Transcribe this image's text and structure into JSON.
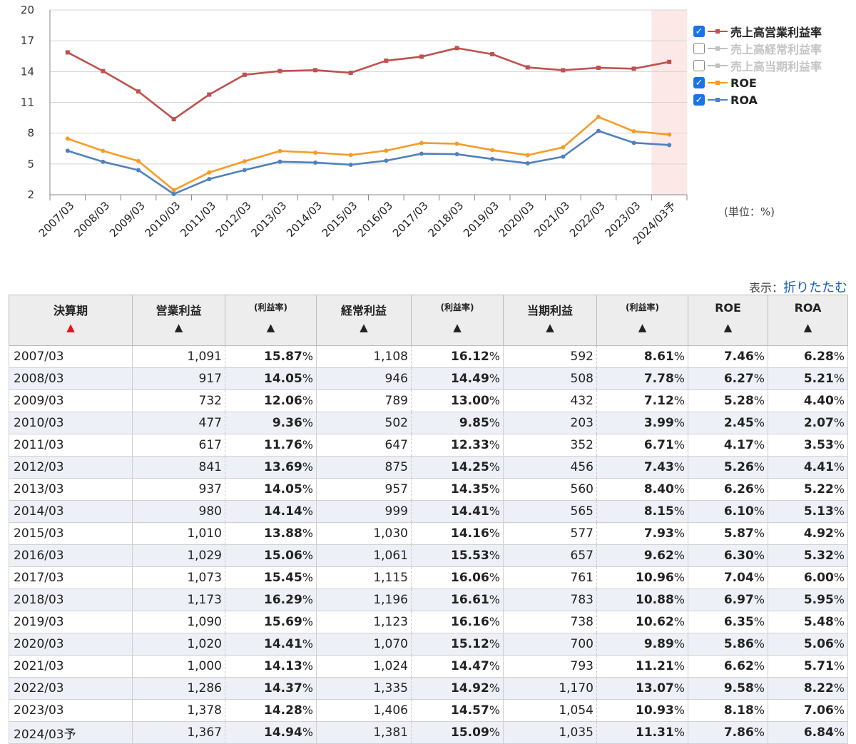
{
  "chart_data": {
    "type": "line",
    "categories": [
      "2007/03",
      "2008/03",
      "2009/03",
      "2010/03",
      "2011/03",
      "2012/03",
      "2013/03",
      "2014/03",
      "2015/03",
      "2016/03",
      "2017/03",
      "2018/03",
      "2019/03",
      "2020/03",
      "2021/03",
      "2022/03",
      "2023/03",
      "2024/03予"
    ],
    "ylim": [
      2,
      20
    ],
    "yticks": [
      2,
      5,
      8,
      11,
      14,
      17,
      20
    ],
    "grid": true,
    "legend_position": "right",
    "forecast_highlight_category": "2024/03予",
    "series": [
      {
        "name": "売上高営業利益率",
        "visible": true,
        "color": "#c0504d",
        "values": [
          15.87,
          14.05,
          12.06,
          9.36,
          11.76,
          13.69,
          14.05,
          14.14,
          13.88,
          15.06,
          15.45,
          16.29,
          15.69,
          14.41,
          14.13,
          14.37,
          14.28,
          14.94
        ]
      },
      {
        "name": "売上高経常利益率",
        "visible": false,
        "color": "#bfbfbf",
        "values": [
          16.12,
          14.49,
          13.0,
          9.85,
          12.33,
          14.25,
          14.35,
          14.41,
          14.16,
          15.53,
          16.06,
          16.61,
          16.16,
          15.12,
          14.47,
          14.92,
          14.57,
          15.09
        ]
      },
      {
        "name": "売上高当期利益率",
        "visible": false,
        "color": "#bfbfbf",
        "values": [
          8.61,
          7.78,
          7.12,
          3.99,
          6.71,
          7.43,
          8.4,
          8.15,
          7.93,
          9.62,
          10.96,
          10.88,
          10.62,
          9.89,
          11.21,
          13.07,
          10.93,
          11.31
        ]
      },
      {
        "name": "ROE",
        "visible": true,
        "color": "#f79b26",
        "values": [
          7.46,
          6.27,
          5.28,
          2.45,
          4.17,
          5.26,
          6.26,
          6.1,
          5.87,
          6.3,
          7.04,
          6.97,
          6.35,
          5.86,
          6.62,
          9.58,
          8.18,
          7.86
        ]
      },
      {
        "name": "ROA",
        "visible": true,
        "color": "#4f81bd",
        "values": [
          6.28,
          5.21,
          4.4,
          2.07,
          3.53,
          4.41,
          5.22,
          5.13,
          4.92,
          5.32,
          6.0,
          5.95,
          5.48,
          5.06,
          5.71,
          8.22,
          7.06,
          6.84
        ]
      }
    ],
    "unit_label": "(単位：%)"
  },
  "display": {
    "label": "表示：",
    "toggle": "折りたたむ"
  },
  "table": {
    "headers": [
      {
        "text": "決算期",
        "sub": false,
        "sort": "▲",
        "active": true
      },
      {
        "text": "営業利益",
        "sub": false,
        "sort": "▲",
        "active": false
      },
      {
        "text": "(利益率)",
        "sub": true,
        "sort": "▲",
        "active": false
      },
      {
        "text": "経常利益",
        "sub": false,
        "sort": "▲",
        "active": false
      },
      {
        "text": "(利益率)",
        "sub": true,
        "sort": "▲",
        "active": false
      },
      {
        "text": "当期利益",
        "sub": false,
        "sort": "▲",
        "active": false
      },
      {
        "text": "(利益率)",
        "sub": true,
        "sort": "▲",
        "active": false
      },
      {
        "text": "ROE",
        "sub": false,
        "sort": "▲",
        "active": false
      },
      {
        "text": "ROA",
        "sub": false,
        "sort": "▲",
        "active": false
      }
    ],
    "rows": [
      [
        "2007/03",
        "1,091",
        "15.87",
        "1,108",
        "16.12",
        "592",
        "8.61",
        "7.46",
        "6.28"
      ],
      [
        "2008/03",
        "917",
        "14.05",
        "946",
        "14.49",
        "508",
        "7.78",
        "6.27",
        "5.21"
      ],
      [
        "2009/03",
        "732",
        "12.06",
        "789",
        "13.00",
        "432",
        "7.12",
        "5.28",
        "4.40"
      ],
      [
        "2010/03",
        "477",
        "9.36",
        "502",
        "9.85",
        "203",
        "3.99",
        "2.45",
        "2.07"
      ],
      [
        "2011/03",
        "617",
        "11.76",
        "647",
        "12.33",
        "352",
        "6.71",
        "4.17",
        "3.53"
      ],
      [
        "2012/03",
        "841",
        "13.69",
        "875",
        "14.25",
        "456",
        "7.43",
        "5.26",
        "4.41"
      ],
      [
        "2013/03",
        "937",
        "14.05",
        "957",
        "14.35",
        "560",
        "8.40",
        "6.26",
        "5.22"
      ],
      [
        "2014/03",
        "980",
        "14.14",
        "999",
        "14.41",
        "565",
        "8.15",
        "6.10",
        "5.13"
      ],
      [
        "2015/03",
        "1,010",
        "13.88",
        "1,030",
        "14.16",
        "577",
        "7.93",
        "5.87",
        "4.92"
      ],
      [
        "2016/03",
        "1,029",
        "15.06",
        "1,061",
        "15.53",
        "657",
        "9.62",
        "6.30",
        "5.32"
      ],
      [
        "2017/03",
        "1,073",
        "15.45",
        "1,115",
        "16.06",
        "761",
        "10.96",
        "7.04",
        "6.00"
      ],
      [
        "2018/03",
        "1,173",
        "16.29",
        "1,196",
        "16.61",
        "783",
        "10.88",
        "6.97",
        "5.95"
      ],
      [
        "2019/03",
        "1,090",
        "15.69",
        "1,123",
        "16.16",
        "738",
        "10.62",
        "6.35",
        "5.48"
      ],
      [
        "2020/03",
        "1,020",
        "14.41",
        "1,070",
        "15.12",
        "700",
        "9.89",
        "5.86",
        "5.06"
      ],
      [
        "2021/03",
        "1,000",
        "14.13",
        "1,024",
        "14.47",
        "793",
        "11.21",
        "6.62",
        "5.71"
      ],
      [
        "2022/03",
        "1,286",
        "14.37",
        "1,335",
        "14.92",
        "1,170",
        "13.07",
        "9.58",
        "8.22"
      ],
      [
        "2023/03",
        "1,378",
        "14.28",
        "1,406",
        "14.57",
        "1,054",
        "10.93",
        "8.18",
        "7.06"
      ],
      [
        "2024/03予",
        "1,367",
        "14.94",
        "1,381",
        "15.09",
        "1,035",
        "11.31",
        "7.86",
        "6.84"
      ]
    ],
    "pct_sign": "%"
  }
}
